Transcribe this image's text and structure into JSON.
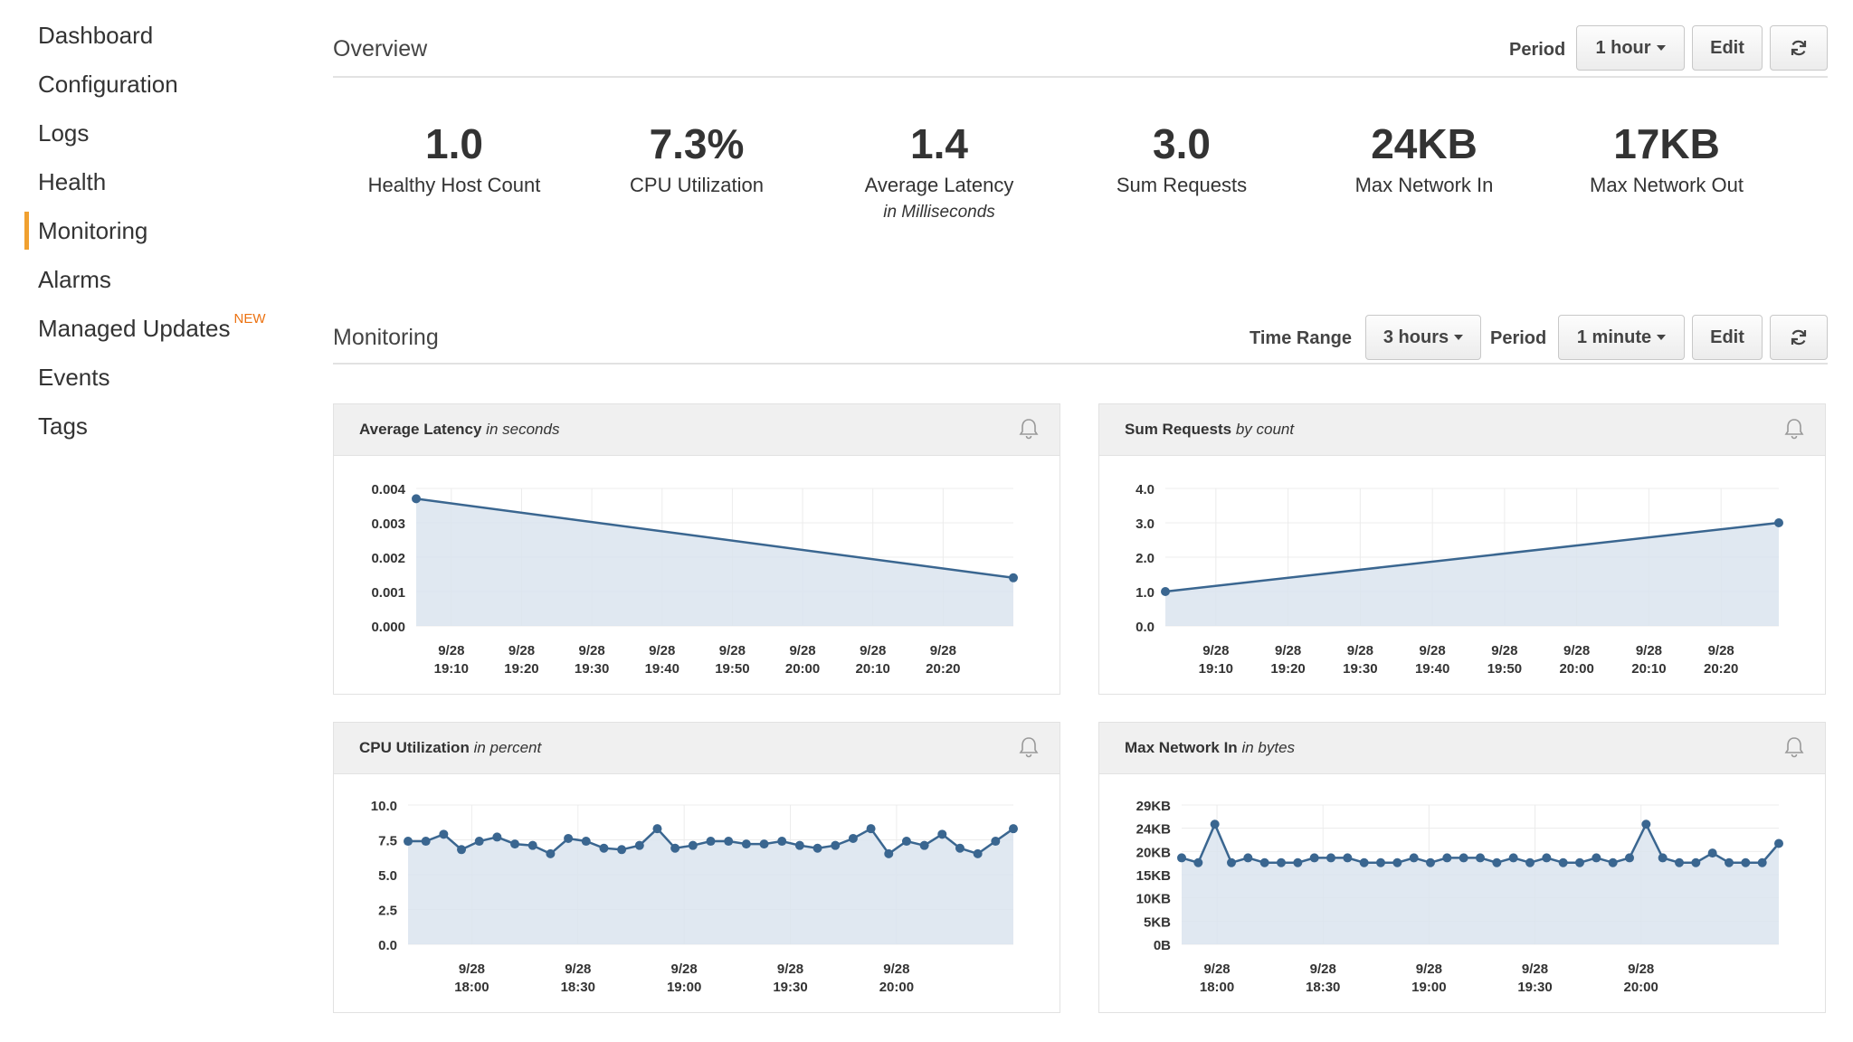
{
  "sidebar": {
    "items": [
      {
        "label": "Dashboard",
        "active": false
      },
      {
        "label": "Configuration",
        "active": false
      },
      {
        "label": "Logs",
        "active": false
      },
      {
        "label": "Health",
        "active": false
      },
      {
        "label": "Monitoring",
        "active": true
      },
      {
        "label": "Alarms",
        "active": false
      },
      {
        "label": "Managed Updates",
        "active": false,
        "badge": "NEW"
      },
      {
        "label": "Events",
        "active": false
      },
      {
        "label": "Tags",
        "active": false
      }
    ]
  },
  "overview": {
    "title": "Overview",
    "period_label": "Period",
    "period_value": "1 hour",
    "edit_label": "Edit",
    "stats": [
      {
        "value": "1.0",
        "label": "Healthy Host Count",
        "sub": ""
      },
      {
        "value": "7.3%",
        "label": "CPU Utilization",
        "sub": ""
      },
      {
        "value": "1.4",
        "label": "Average Latency",
        "sub": "in Milliseconds"
      },
      {
        "value": "3.0",
        "label": "Sum Requests",
        "sub": ""
      },
      {
        "value": "24KB",
        "label": "Max Network In",
        "sub": ""
      },
      {
        "value": "17KB",
        "label": "Max Network Out",
        "sub": ""
      }
    ]
  },
  "monitoring": {
    "title": "Monitoring",
    "time_range_label": "Time Range",
    "time_range_value": "3 hours",
    "period_label": "Period",
    "period_value": "1 minute",
    "edit_label": "Edit"
  },
  "colors": {
    "accent": "#f0a030",
    "line": "#3a6690",
    "fill": "#dbe4ef",
    "badge": "#ec7211"
  },
  "chart_data": [
    {
      "type": "area",
      "title": "Average Latency",
      "subtitle": "in seconds",
      "yticks": [
        "0.000",
        "0.001",
        "0.002",
        "0.003",
        "0.004"
      ],
      "ylim": [
        0,
        0.004
      ],
      "xticks": [
        [
          "9/28",
          "19:10"
        ],
        [
          "9/28",
          "19:20"
        ],
        [
          "9/28",
          "19:30"
        ],
        [
          "9/28",
          "19:40"
        ],
        [
          "9/28",
          "19:50"
        ],
        [
          "9/28",
          "20:00"
        ],
        [
          "9/28",
          "20:10"
        ],
        [
          "9/28",
          "20:20"
        ]
      ],
      "x_range_minutes": [
        1145,
        1230
      ],
      "x": [
        1145,
        1230
      ],
      "values": [
        0.0037,
        0.0014
      ]
    },
    {
      "type": "area",
      "title": "Sum Requests",
      "subtitle": "by count",
      "yticks": [
        "0.0",
        "1.0",
        "2.0",
        "3.0",
        "4.0"
      ],
      "ylim": [
        0,
        4
      ],
      "xticks": [
        [
          "9/28",
          "19:10"
        ],
        [
          "9/28",
          "19:20"
        ],
        [
          "9/28",
          "19:30"
        ],
        [
          "9/28",
          "19:40"
        ],
        [
          "9/28",
          "19:50"
        ],
        [
          "9/28",
          "20:00"
        ],
        [
          "9/28",
          "20:10"
        ],
        [
          "9/28",
          "20:20"
        ]
      ],
      "x_range_minutes": [
        1143,
        1228
      ],
      "x": [
        1143,
        1228
      ],
      "values": [
        1.0,
        3.0
      ]
    },
    {
      "type": "area",
      "title": "CPU Utilization",
      "subtitle": "in percent",
      "yticks": [
        "0.0",
        "2.5",
        "5.0",
        "7.5",
        "10.0"
      ],
      "ylim": [
        0,
        10
      ],
      "xticks": [
        [
          "9/28",
          "18:00"
        ],
        [
          "9/28",
          "18:30"
        ],
        [
          "9/28",
          "19:00"
        ],
        [
          "9/28",
          "19:30"
        ],
        [
          "9/28",
          "20:00"
        ]
      ],
      "x_range_minutes": [
        1062,
        1233
      ],
      "values": [
        7.4,
        7.4,
        7.9,
        6.8,
        7.4,
        7.7,
        7.2,
        7.1,
        6.5,
        7.6,
        7.4,
        6.9,
        6.8,
        7.1,
        8.3,
        6.9,
        7.1,
        7.4,
        7.4,
        7.2,
        7.2,
        7.4,
        7.1,
        6.9,
        7.1,
        7.6,
        8.3,
        6.5,
        7.4,
        7.1,
        7.9,
        6.9,
        6.5,
        7.4,
        8.3
      ]
    },
    {
      "type": "area",
      "title": "Max Network In",
      "subtitle": "in bytes",
      "yticks": [
        "0B",
        "5KB",
        "10KB",
        "15KB",
        "20KB",
        "24KB",
        "29KB"
      ],
      "ylim": [
        0,
        29
      ],
      "xticks": [
        [
          "9/28",
          "18:00"
        ],
        [
          "9/28",
          "18:30"
        ],
        [
          "9/28",
          "19:00"
        ],
        [
          "9/28",
          "19:30"
        ],
        [
          "9/28",
          "20:00"
        ]
      ],
      "x_range_minutes": [
        1070,
        1239
      ],
      "values": [
        18,
        17,
        25,
        17,
        18,
        17,
        17,
        17,
        18,
        18,
        18,
        17,
        17,
        17,
        18,
        17,
        18,
        18,
        18,
        17,
        18,
        17,
        18,
        17,
        17,
        18,
        17,
        18,
        25,
        18,
        17,
        17,
        19,
        17,
        17,
        17,
        21
      ]
    }
  ]
}
